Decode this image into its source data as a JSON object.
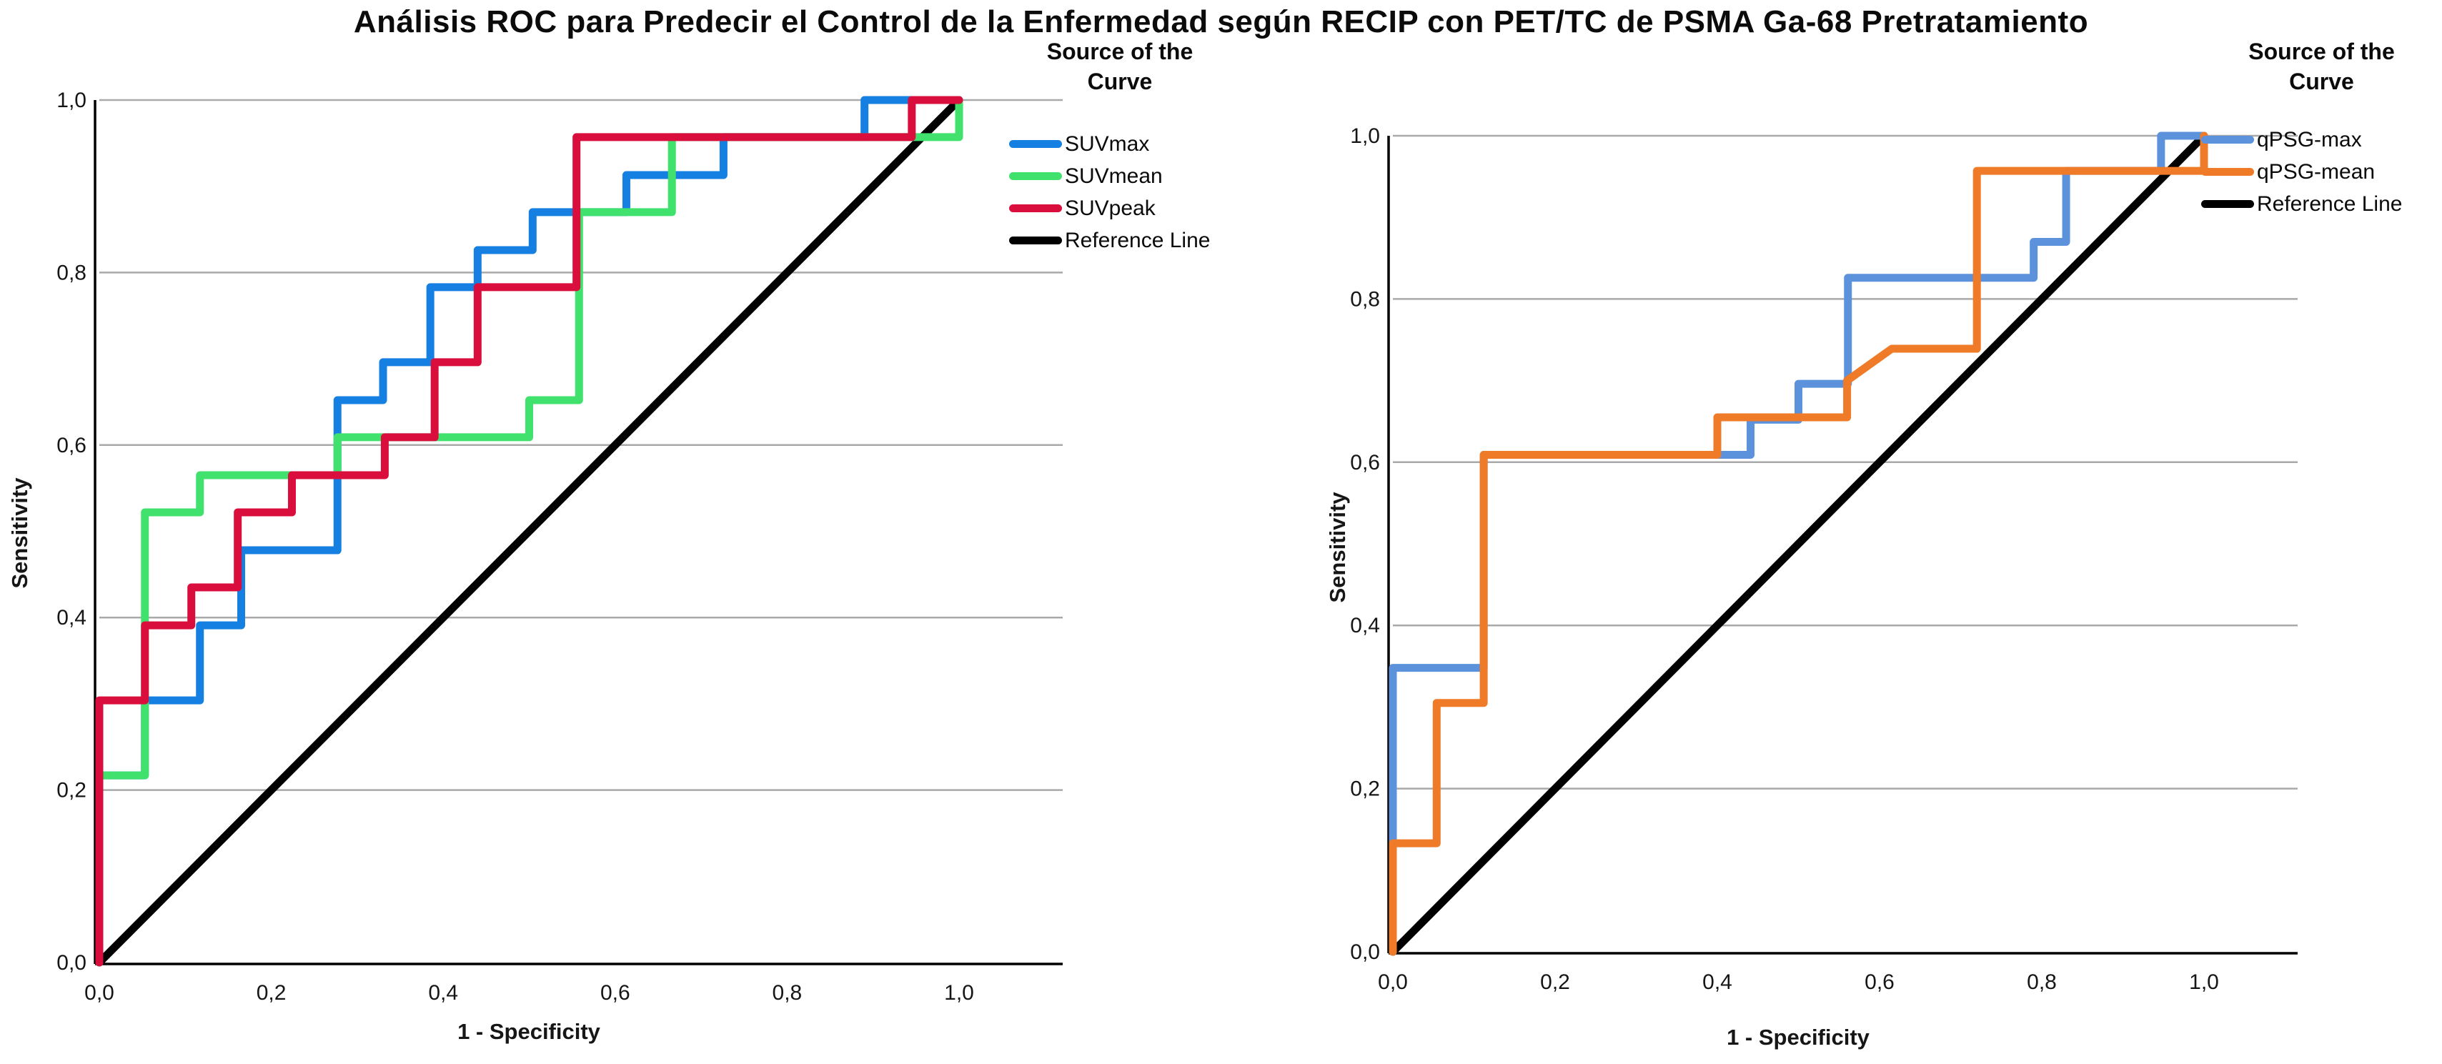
{
  "page_title": "Análisis ROC para Predecir el Control de la Enfermedad según RECIP con PET/TC de PSMA Ga-68 Pretratamiento",
  "chart_data": [
    {
      "type": "line",
      "subtype": "roc-step-curves",
      "xlabel": "1 - Specificity",
      "ylabel": "Sensitivity",
      "legend_title": "Source of the Curve",
      "xlim": [
        0,
        1
      ],
      "ylim": [
        0,
        1
      ],
      "grid": "horizontal",
      "legend_position": "right-top",
      "tick_values": [
        0,
        0.2,
        0.4,
        0.6,
        0.8,
        1.0
      ],
      "x_tick_labels": [
        "0,0",
        "0,2",
        "0,4",
        "0,6",
        "0,8",
        "1,0"
      ],
      "y_tick_labels": [
        "0,0",
        "0,2",
        "0,4",
        "0,6",
        "0,8",
        "1,0"
      ],
      "series": [
        {
          "name": "SUVmax",
          "color": "#157fe2",
          "role": "curve",
          "points": [
            [
              0,
              0
            ],
            [
              0,
              0.217
            ],
            [
              0.053,
              0.217
            ],
            [
              0.053,
              0.304
            ],
            [
              0.117,
              0.304
            ],
            [
              0.117,
              0.391
            ],
            [
              0.165,
              0.391
            ],
            [
              0.165,
              0.478
            ],
            [
              0.277,
              0.478
            ],
            [
              0.277,
              0.652
            ],
            [
              0.33,
              0.652
            ],
            [
              0.33,
              0.696
            ],
            [
              0.385,
              0.696
            ],
            [
              0.385,
              0.783
            ],
            [
              0.44,
              0.783
            ],
            [
              0.44,
              0.826
            ],
            [
              0.504,
              0.826
            ],
            [
              0.504,
              0.87
            ],
            [
              0.613,
              0.87
            ],
            [
              0.613,
              0.913
            ],
            [
              0.726,
              0.913
            ],
            [
              0.726,
              0.957
            ],
            [
              0.89,
              0.957
            ],
            [
              0.89,
              1
            ],
            [
              1,
              1
            ]
          ]
        },
        {
          "name": "SUVmean",
          "color": "#40e26d",
          "role": "curve",
          "points": [
            [
              0,
              0
            ],
            [
              0,
              0.217
            ],
            [
              0.053,
              0.217
            ],
            [
              0.053,
              0.522
            ],
            [
              0.117,
              0.522
            ],
            [
              0.117,
              0.565
            ],
            [
              0.277,
              0.565
            ],
            [
              0.277,
              0.609
            ],
            [
              0.5,
              0.609
            ],
            [
              0.5,
              0.652
            ],
            [
              0.558,
              0.652
            ],
            [
              0.558,
              0.87
            ],
            [
              0.666,
              0.87
            ],
            [
              0.666,
              0.957
            ],
            [
              1,
              0.957
            ],
            [
              1,
              1
            ]
          ]
        },
        {
          "name": "SUVpeak",
          "color": "#da0e3d",
          "role": "curve",
          "points": [
            [
              0,
              0
            ],
            [
              0,
              0.304
            ],
            [
              0.053,
              0.304
            ],
            [
              0.053,
              0.391
            ],
            [
              0.107,
              0.391
            ],
            [
              0.107,
              0.435
            ],
            [
              0.161,
              0.435
            ],
            [
              0.161,
              0.522
            ],
            [
              0.224,
              0.522
            ],
            [
              0.224,
              0.565
            ],
            [
              0.332,
              0.565
            ],
            [
              0.332,
              0.609
            ],
            [
              0.39,
              0.609
            ],
            [
              0.39,
              0.696
            ],
            [
              0.44,
              0.696
            ],
            [
              0.44,
              0.783
            ],
            [
              0.555,
              0.783
            ],
            [
              0.555,
              0.957
            ],
            [
              0.945,
              0.957
            ],
            [
              0.945,
              1
            ],
            [
              1,
              1
            ]
          ]
        },
        {
          "name": "Reference Line",
          "color": "#000000",
          "role": "reference",
          "points": [
            [
              0,
              0
            ],
            [
              1,
              1
            ]
          ]
        }
      ]
    },
    {
      "type": "line",
      "subtype": "roc-step-curves",
      "xlabel": "1 - Specificity",
      "ylabel": "Sensitivity",
      "legend_title": "Source of the Curve",
      "xlim": [
        0,
        1
      ],
      "ylim": [
        0,
        1
      ],
      "grid": "horizontal",
      "legend_position": "right-top",
      "tick_values": [
        0,
        0.2,
        0.4,
        0.6,
        0.8,
        1.0
      ],
      "x_tick_labels": [
        "0,0",
        "0,2",
        "0,4",
        "0,6",
        "0,8",
        "1,0"
      ],
      "y_tick_labels": [
        "0,0",
        "0,2",
        "0,4",
        "0,6",
        "0,8",
        "1,0"
      ],
      "series": [
        {
          "name": "qPSG-max",
          "color": "#5b92db",
          "role": "curve",
          "points": [
            [
              0,
              0
            ],
            [
              0,
              0.348
            ],
            [
              0.112,
              0.348
            ],
            [
              0.112,
              0.609
            ],
            [
              0.441,
              0.609
            ],
            [
              0.441,
              0.652
            ],
            [
              0.5,
              0.652
            ],
            [
              0.5,
              0.696
            ],
            [
              0.561,
              0.696
            ],
            [
              0.561,
              0.826
            ],
            [
              0.79,
              0.826
            ],
            [
              0.79,
              0.87
            ],
            [
              0.83,
              0.87
            ],
            [
              0.83,
              0.957
            ],
            [
              0.947,
              0.957
            ],
            [
              0.947,
              1
            ],
            [
              1,
              1
            ]
          ]
        },
        {
          "name": "qPSG-mean",
          "color": "#ef7a28",
          "role": "curve",
          "points": [
            [
              0,
              0
            ],
            [
              0,
              0.133
            ],
            [
              0.054,
              0.133
            ],
            [
              0.054,
              0.305
            ],
            [
              0.112,
              0.305
            ],
            [
              0.112,
              0.609
            ],
            [
              0.4,
              0.609
            ],
            [
              0.4,
              0.655
            ],
            [
              0.56,
              0.655
            ],
            [
              0.56,
              0.7
            ],
            [
              0.615,
              0.739
            ],
            [
              0.72,
              0.739
            ],
            [
              0.72,
              0.957
            ],
            [
              1,
              0.957
            ],
            [
              1,
              1
            ]
          ]
        },
        {
          "name": "Reference Line",
          "color": "#000000",
          "role": "reference",
          "points": [
            [
              0,
              0
            ],
            [
              1,
              1
            ]
          ]
        }
      ]
    }
  ]
}
